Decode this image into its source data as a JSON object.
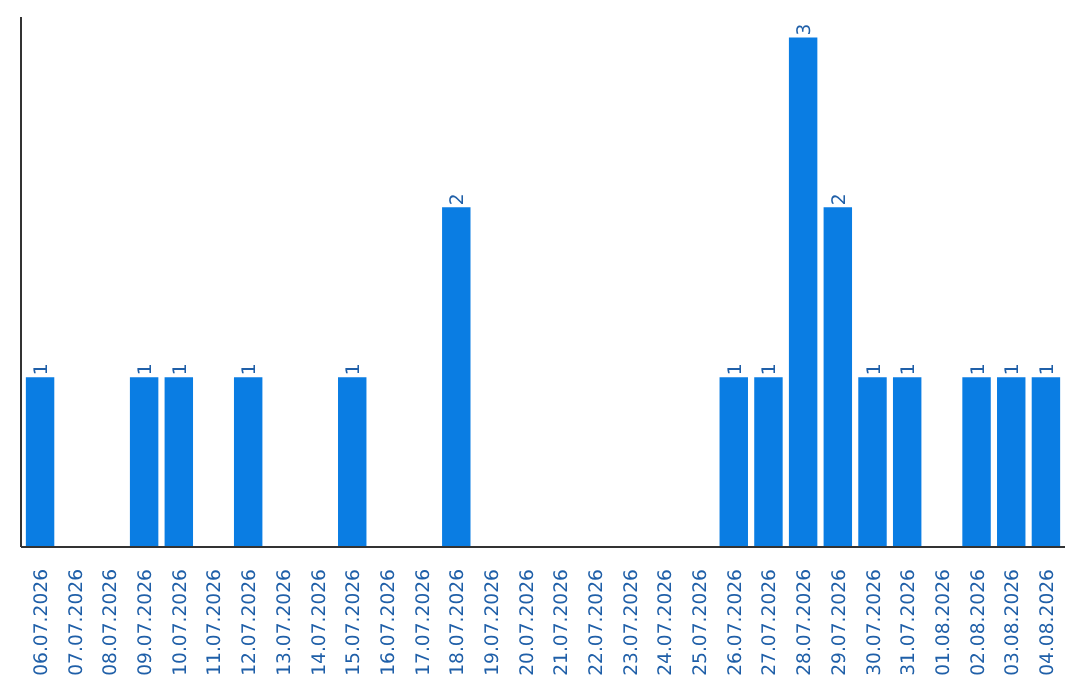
{
  "chart_data": {
    "type": "bar",
    "categories": [
      "06.07.2026",
      "07.07.2026",
      "08.07.2026",
      "09.07.2026",
      "10.07.2026",
      "11.07.2026",
      "12.07.2026",
      "13.07.2026",
      "14.07.2026",
      "15.07.2026",
      "16.07.2026",
      "17.07.2026",
      "18.07.2026",
      "19.07.2026",
      "20.07.2026",
      "21.07.2026",
      "22.07.2026",
      "23.07.2026",
      "24.07.2026",
      "25.07.2026",
      "26.07.2026",
      "27.07.2026",
      "28.07.2026",
      "29.07.2026",
      "30.07.2026",
      "31.07.2026",
      "01.08.2026",
      "02.08.2026",
      "03.08.2026",
      "04.08.2026"
    ],
    "values": [
      1,
      0,
      0,
      1,
      1,
      0,
      1,
      0,
      0,
      1,
      0,
      0,
      2,
      0,
      0,
      0,
      0,
      0,
      0,
      0,
      1,
      1,
      3,
      2,
      1,
      1,
      0,
      1,
      1,
      1
    ],
    "value_labels": [
      "1",
      null,
      null,
      "1",
      "1",
      null,
      "1",
      null,
      null,
      "1",
      null,
      null,
      "2",
      null,
      null,
      null,
      null,
      null,
      null,
      null,
      "1",
      "1",
      "3",
      "2",
      "1",
      "1",
      null,
      "1",
      "1",
      "1"
    ],
    "color": "#0a7de3",
    "grid": false
  }
}
